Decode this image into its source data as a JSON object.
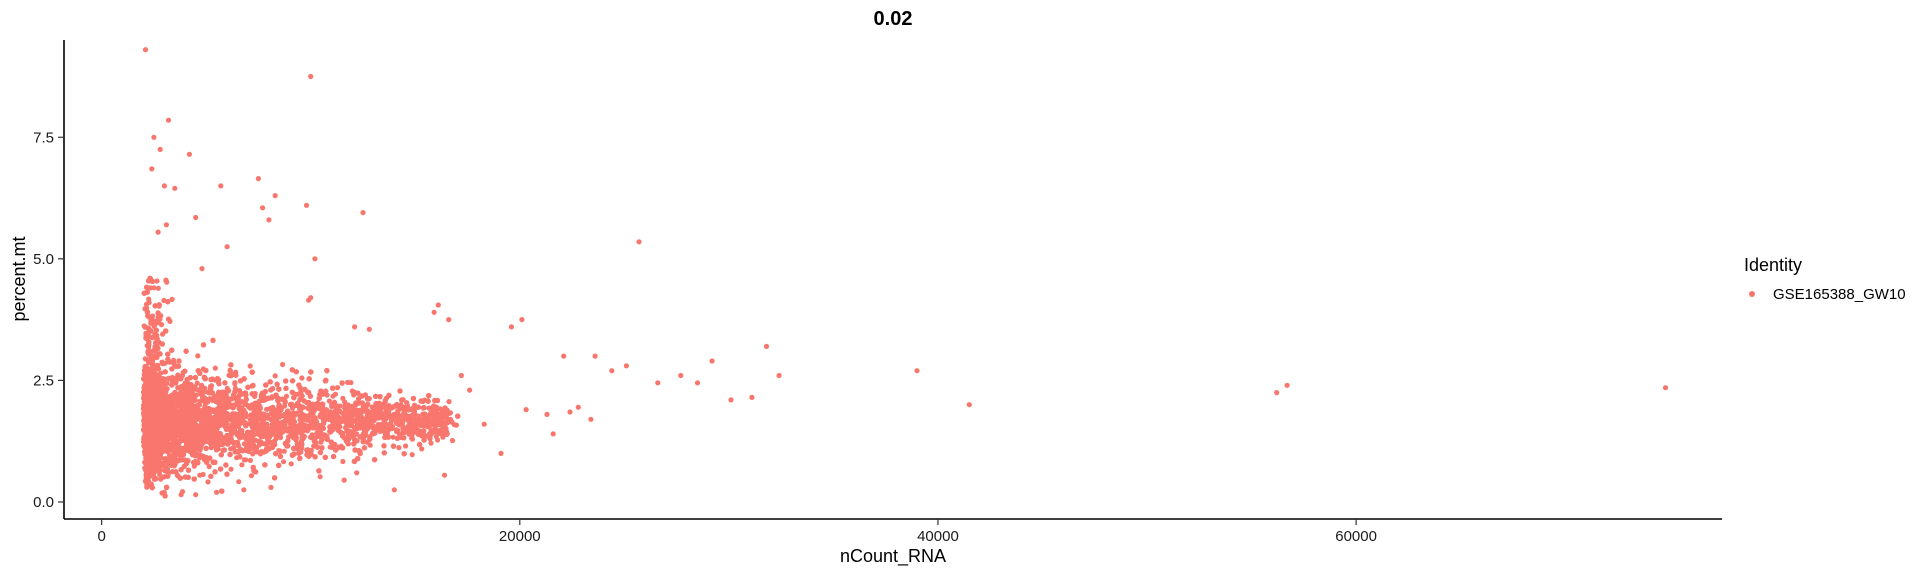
{
  "chart_data": {
    "type": "scatter",
    "title": "0.02",
    "xlabel": "nCount_RNA",
    "ylabel": "percent.mt",
    "xlim": [
      -1800,
      77500
    ],
    "ylim": [
      -0.35,
      9.5
    ],
    "x_ticks": [
      0,
      20000,
      40000,
      60000
    ],
    "x_tick_labels": [
      "0",
      "20000",
      "40000",
      "60000"
    ],
    "y_ticks": [
      0.0,
      2.5,
      5.0,
      7.5
    ],
    "y_tick_labels": [
      "0.0",
      "2.5",
      "5.0",
      "7.5"
    ],
    "grid": false,
    "legend": {
      "title": "Identity",
      "placement": "right",
      "entries": [
        {
          "label": "GSE165388_GW10",
          "color": "#F8766D"
        }
      ]
    },
    "point_color": "#F8766D",
    "series": [
      {
        "name": "GSE165388_GW10",
        "points": [
          [
            2100,
            9.3
          ],
          [
            10000,
            8.75
          ],
          [
            3200,
            7.85
          ],
          [
            2500,
            7.5
          ],
          [
            2800,
            7.25
          ],
          [
            4200,
            7.15
          ],
          [
            7500,
            6.65
          ],
          [
            8300,
            6.3
          ],
          [
            3000,
            6.5
          ],
          [
            3500,
            6.45
          ],
          [
            5700,
            6.5
          ],
          [
            7700,
            6.05
          ],
          [
            9800,
            6.1
          ],
          [
            12500,
            5.95
          ],
          [
            8000,
            5.8
          ],
          [
            2400,
            6.85
          ],
          [
            4500,
            5.85
          ],
          [
            3100,
            5.7
          ],
          [
            2700,
            5.55
          ],
          [
            6000,
            5.25
          ],
          [
            10200,
            5.0
          ],
          [
            4800,
            4.8
          ],
          [
            9900,
            4.15
          ],
          [
            10000,
            4.2
          ],
          [
            16100,
            4.05
          ],
          [
            15900,
            3.9
          ],
          [
            16600,
            3.75
          ],
          [
            20100,
            3.75
          ],
          [
            19600,
            3.6
          ],
          [
            12100,
            3.6
          ],
          [
            12800,
            3.55
          ],
          [
            25700,
            5.35
          ],
          [
            31800,
            3.2
          ],
          [
            22100,
            3.0
          ],
          [
            23600,
            3.0
          ],
          [
            24400,
            2.7
          ],
          [
            25100,
            2.8
          ],
          [
            26600,
            2.45
          ],
          [
            27700,
            2.6
          ],
          [
            28500,
            2.45
          ],
          [
            29200,
            2.9
          ],
          [
            30100,
            2.1
          ],
          [
            31100,
            2.15
          ],
          [
            32400,
            2.6
          ],
          [
            39000,
            2.7
          ],
          [
            41500,
            2.0
          ],
          [
            56200,
            2.25
          ],
          [
            56700,
            2.4
          ],
          [
            74800,
            2.35
          ],
          [
            20300,
            1.9
          ],
          [
            21300,
            1.8
          ],
          [
            21600,
            1.4
          ],
          [
            22400,
            1.85
          ],
          [
            22800,
            1.95
          ],
          [
            23400,
            1.7
          ],
          [
            19100,
            1.0
          ],
          [
            18300,
            1.6
          ],
          [
            17600,
            2.3
          ],
          [
            17200,
            2.6
          ],
          [
            16400,
            0.55
          ],
          [
            14000,
            0.25
          ],
          [
            12200,
            0.6
          ],
          [
            11600,
            0.45
          ],
          [
            3000,
            0.2
          ],
          [
            3800,
            0.15
          ],
          [
            4500,
            0.15
          ],
          [
            5500,
            0.2
          ],
          [
            6800,
            0.25
          ],
          [
            8100,
            0.3
          ]
        ]
      }
    ],
    "dense_region": {
      "description_hidden": true,
      "count": 9000,
      "x_min": 2000,
      "x_center": 3000,
      "y_center": 1.65
    }
  }
}
